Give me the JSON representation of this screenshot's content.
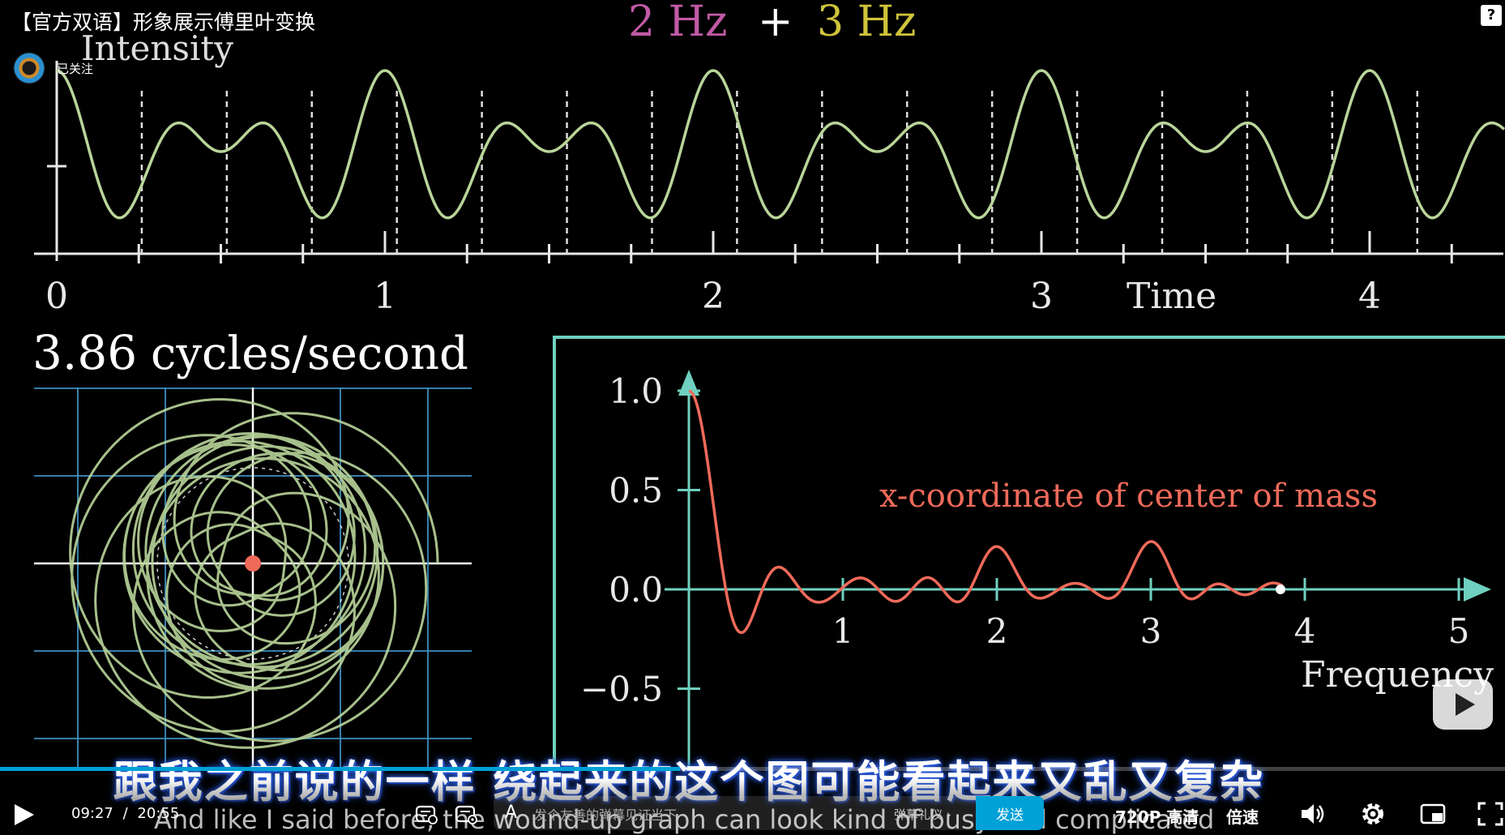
{
  "video": {
    "title": "【官方双语】形象展示傅里叶变换",
    "uploader_follow_label": "已关注"
  },
  "scene": {
    "top_title_a": "2 Hz",
    "top_title_plus": "+",
    "top_title_b": "3 Hz",
    "intensity_label": "Intensity",
    "time_label": "Time",
    "time_ticks": [
      "0",
      "1",
      "2",
      "3",
      "4"
    ],
    "winding_frequency_value": "3.86",
    "winding_frequency_unit": "cycles/second",
    "plot_annotation": "x-coordinate of center of mass",
    "frequency_label": "Frequency",
    "y_ticks": [
      "1.0",
      "0.5",
      "0.0",
      "−0.5"
    ],
    "x_ticks": [
      "1",
      "2",
      "3",
      "4",
      "5"
    ],
    "colors": {
      "pink": "#c15aa6",
      "yellow": "#cfc33a",
      "wave": "#b9d59a",
      "teal": "#6fd0c0",
      "red": "#f06a5a"
    }
  },
  "subtitles": {
    "chinese": "跟我之前说的一样 绕起来的这个图可能看起来又乱又复杂",
    "english": "And like I said before, the wound-up graph can look kind of busy and complicated"
  },
  "player": {
    "current_time": "09:27",
    "separator": "/",
    "duration": "20:55",
    "progress_fraction": 0.452,
    "danmaku_placeholder": "发个友善的弹幕见证当下",
    "danmaku_etiquette": "弹幕礼仪 ›",
    "send_label": "发送",
    "quality": "720P 高清",
    "speed": "倍速",
    "accent_color": "#00a1d6"
  },
  "icons": [
    "help-icon",
    "play-icon",
    "danmaku-toggle-icon",
    "danmaku-settings-icon",
    "font-a-icon",
    "volume-icon",
    "settings-gear-icon",
    "pip-icon",
    "fullscreen-icon",
    "big-play-icon"
  ]
}
